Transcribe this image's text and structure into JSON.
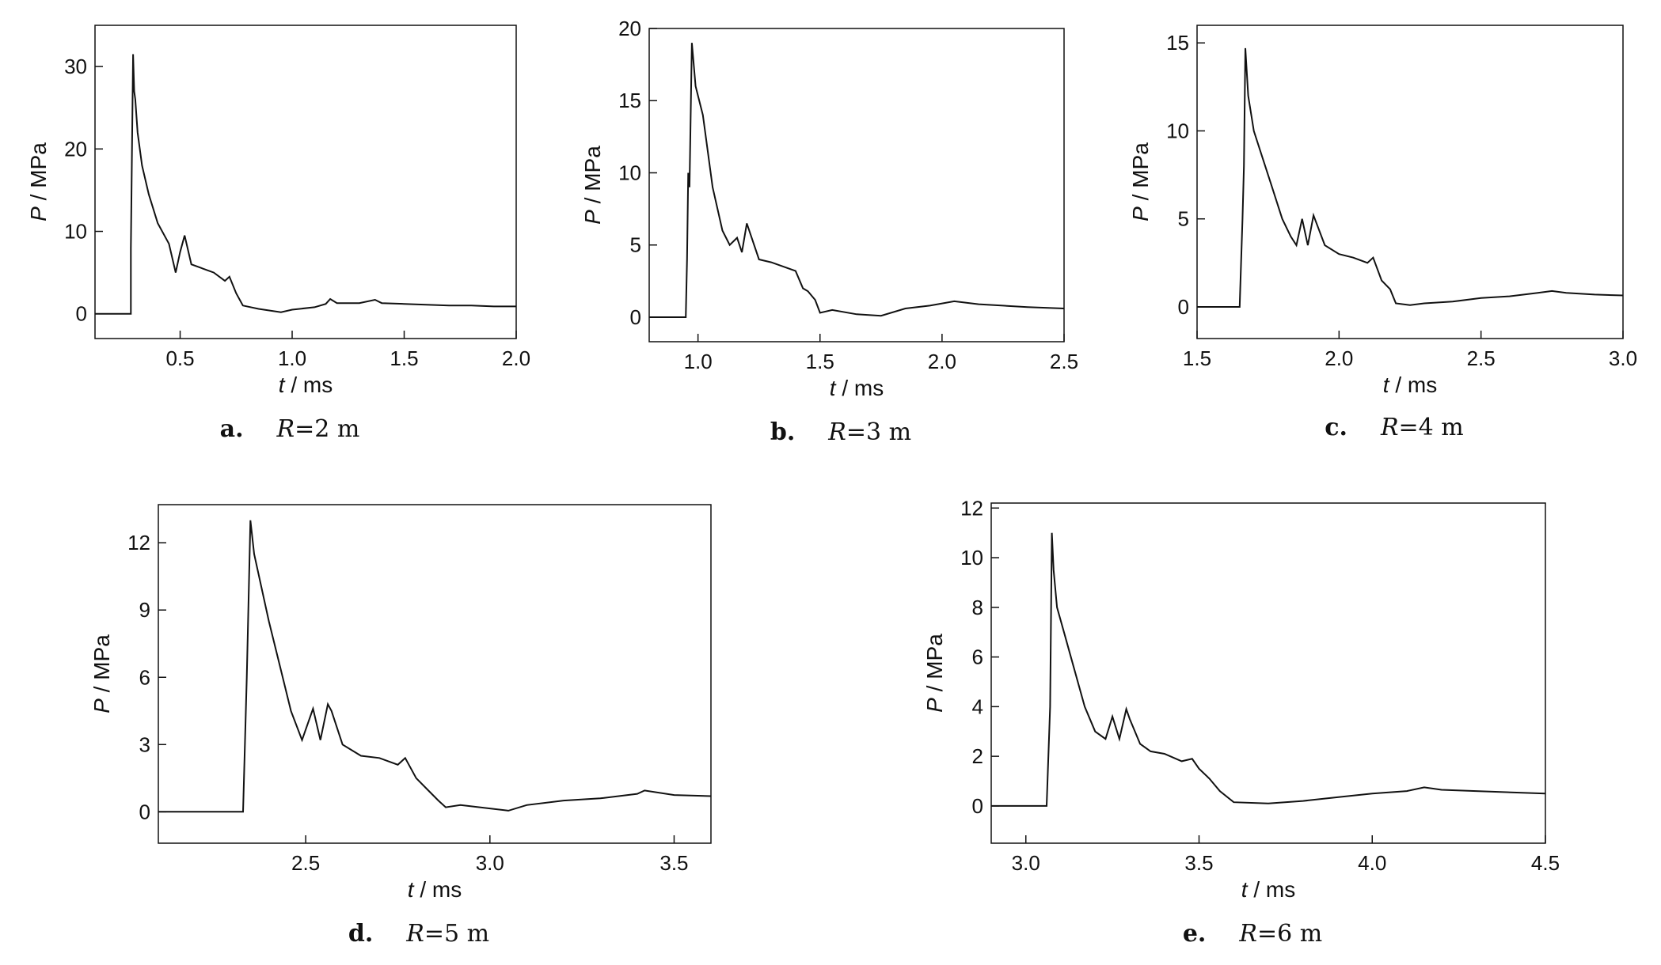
{
  "chart_data": [
    {
      "type": "line",
      "caption_letter": "a.",
      "caption_var": "R",
      "caption_value": "=2 m",
      "xlabel_var": "t",
      "xlabel_unit": " / ms",
      "ylabel_var": "P",
      "ylabel_unit": " / MPa",
      "xlim": [
        0.12,
        2.0
      ],
      "ylim": [
        -3,
        35
      ],
      "xticks": [
        0.5,
        1.0,
        1.5,
        2.0
      ],
      "xtick_labels": [
        "0.5",
        "1.0",
        "1.5",
        "2.0"
      ],
      "yticks": [
        0,
        10,
        20,
        30
      ],
      "ytick_labels": [
        "0",
        "10",
        "20",
        "30"
      ],
      "series": [
        {
          "x": [
            0.12,
            0.28,
            0.28,
            0.29,
            0.295,
            0.3,
            0.31,
            0.33,
            0.36,
            0.4,
            0.45,
            0.48,
            0.5,
            0.52,
            0.55,
            0.6,
            0.65,
            0.7,
            0.72,
            0.75,
            0.78,
            0.85,
            0.95,
            1.0,
            1.1,
            1.15,
            1.17,
            1.2,
            1.3,
            1.37,
            1.4,
            1.5,
            1.6,
            1.7,
            1.8,
            1.9,
            2.0
          ],
          "y": [
            0,
            0,
            8,
            31.5,
            27,
            26,
            22,
            18,
            14.5,
            11,
            8.5,
            5,
            7.5,
            9.5,
            6,
            5.5,
            5,
            4,
            4.5,
            2.5,
            1,
            0.6,
            0.2,
            0.5,
            0.8,
            1.2,
            1.8,
            1.3,
            1.3,
            1.7,
            1.3,
            1.2,
            1.1,
            1.0,
            1.0,
            0.9,
            0.9
          ]
        }
      ]
    },
    {
      "type": "line",
      "caption_letter": "b.",
      "caption_var": "R",
      "caption_value": "=3 m",
      "xlabel_var": "t",
      "xlabel_unit": " / ms",
      "ylabel_var": "P",
      "ylabel_unit": " / MPa",
      "xlim": [
        0.8,
        2.5
      ],
      "ylim": [
        -1.7,
        20
      ],
      "xticks": [
        1.0,
        1.5,
        2.0,
        2.5
      ],
      "xtick_labels": [
        "1.0",
        "1.5",
        "2.0",
        "2.5"
      ],
      "yticks": [
        0,
        5,
        10,
        15,
        20
      ],
      "ytick_labels": [
        "0",
        "5",
        "10",
        "15",
        "20"
      ],
      "series": [
        {
          "x": [
            0.8,
            0.95,
            0.955,
            0.96,
            0.965,
            0.975,
            0.99,
            1.02,
            1.06,
            1.1,
            1.13,
            1.16,
            1.18,
            1.2,
            1.25,
            1.3,
            1.35,
            1.4,
            1.43,
            1.45,
            1.48,
            1.5,
            1.55,
            1.65,
            1.75,
            1.85,
            1.95,
            2.05,
            2.15,
            2.25,
            2.35,
            2.5
          ],
          "y": [
            0,
            0,
            4,
            10,
            9,
            19,
            16,
            14,
            9,
            6,
            5,
            5.5,
            4.5,
            6.5,
            4,
            3.8,
            3.5,
            3.2,
            2,
            1.8,
            1.2,
            0.3,
            0.5,
            0.2,
            0.1,
            0.6,
            0.8,
            1.1,
            0.9,
            0.8,
            0.7,
            0.6
          ]
        }
      ]
    },
    {
      "type": "line",
      "caption_letter": "c.",
      "caption_var": "R",
      "caption_value": "=4 m",
      "xlabel_var": "t",
      "xlabel_unit": " / ms",
      "ylabel_var": "P",
      "ylabel_unit": " / MPa",
      "xlim": [
        1.5,
        3.0
      ],
      "ylim": [
        -1.8,
        16
      ],
      "xticks": [
        1.5,
        2.0,
        2.5,
        3.0
      ],
      "xtick_labels": [
        "1.5",
        "2.0",
        "2.5",
        "3.0"
      ],
      "yticks": [
        0,
        5,
        10,
        15
      ],
      "ytick_labels": [
        "0",
        "5",
        "10",
        "15"
      ],
      "series": [
        {
          "x": [
            1.5,
            1.65,
            1.66,
            1.665,
            1.67,
            1.68,
            1.7,
            1.73,
            1.76,
            1.8,
            1.83,
            1.85,
            1.87,
            1.89,
            1.91,
            1.95,
            2.0,
            2.05,
            2.1,
            2.12,
            2.15,
            2.18,
            2.2,
            2.25,
            2.3,
            2.4,
            2.5,
            2.6,
            2.7,
            2.75,
            2.8,
            2.9,
            3.0
          ],
          "y": [
            0,
            0,
            5,
            8,
            14.7,
            12,
            10,
            8.5,
            7,
            5,
            4,
            3.5,
            5,
            3.5,
            5.2,
            3.5,
            3,
            2.8,
            2.5,
            2.8,
            1.5,
            1.0,
            0.2,
            0.1,
            0.2,
            0.3,
            0.5,
            0.6,
            0.8,
            0.9,
            0.8,
            0.7,
            0.65
          ]
        }
      ]
    },
    {
      "type": "line",
      "caption_letter": "d.",
      "caption_var": "R",
      "caption_value": "=5 m",
      "xlabel_var": "t",
      "xlabel_unit": " / ms",
      "ylabel_var": "P",
      "ylabel_unit": " / MPa",
      "xlim": [
        2.1,
        3.6
      ],
      "ylim": [
        -1.4,
        13.7
      ],
      "xticks": [
        2.5,
        3.0,
        3.5
      ],
      "xtick_labels": [
        "2.5",
        "3.0",
        "3.5"
      ],
      "yticks": [
        0,
        3,
        6,
        9,
        12
      ],
      "ytick_labels": [
        "0",
        "3",
        "6",
        "9",
        "12"
      ],
      "series": [
        {
          "x": [
            2.1,
            2.33,
            2.34,
            2.35,
            2.36,
            2.38,
            2.4,
            2.43,
            2.46,
            2.49,
            2.52,
            2.54,
            2.56,
            2.57,
            2.6,
            2.65,
            2.7,
            2.75,
            2.77,
            2.8,
            2.83,
            2.86,
            2.88,
            2.92,
            3.0,
            3.05,
            3.1,
            3.2,
            3.3,
            3.4,
            3.42,
            3.5,
            3.6
          ],
          "y": [
            0,
            0,
            6,
            13,
            11.5,
            10,
            8.5,
            6.5,
            4.5,
            3.2,
            4.6,
            3.2,
            4.8,
            4.5,
            3,
            2.5,
            2.4,
            2.1,
            2.4,
            1.5,
            1.0,
            0.5,
            0.2,
            0.3,
            0.15,
            0.05,
            0.3,
            0.5,
            0.6,
            0.8,
            0.95,
            0.75,
            0.7
          ]
        }
      ]
    },
    {
      "type": "line",
      "caption_letter": "e.",
      "caption_var": "R",
      "caption_value": "=6 m",
      "xlabel_var": "t",
      "xlabel_unit": " / ms",
      "ylabel_var": "P",
      "ylabel_unit": " / MPa",
      "xlim": [
        2.9,
        4.5
      ],
      "ylim": [
        -1.5,
        12.2
      ],
      "xticks": [
        3.0,
        3.5,
        4.0,
        4.5
      ],
      "xtick_labels": [
        "3.0",
        "3.5",
        "4.0",
        "4.5"
      ],
      "yticks": [
        0,
        2,
        4,
        6,
        8,
        10,
        12
      ],
      "ytick_labels": [
        "0",
        "2",
        "4",
        "6",
        "8",
        "10",
        "12"
      ],
      "series": [
        {
          "x": [
            2.9,
            3.06,
            3.07,
            3.075,
            3.08,
            3.09,
            3.11,
            3.14,
            3.17,
            3.2,
            3.23,
            3.25,
            3.27,
            3.29,
            3.3,
            3.33,
            3.36,
            3.4,
            3.45,
            3.48,
            3.5,
            3.53,
            3.56,
            3.6,
            3.7,
            3.8,
            3.9,
            4.0,
            4.1,
            4.15,
            4.2,
            4.3,
            4.4,
            4.5
          ],
          "y": [
            0,
            0,
            4,
            11,
            9.5,
            8,
            7,
            5.5,
            4,
            3,
            2.7,
            3.6,
            2.7,
            3.9,
            3.5,
            2.5,
            2.2,
            2.1,
            1.8,
            1.9,
            1.5,
            1.1,
            0.6,
            0.15,
            0.1,
            0.2,
            0.35,
            0.5,
            0.6,
            0.75,
            0.65,
            0.6,
            0.55,
            0.5
          ]
        }
      ]
    }
  ]
}
